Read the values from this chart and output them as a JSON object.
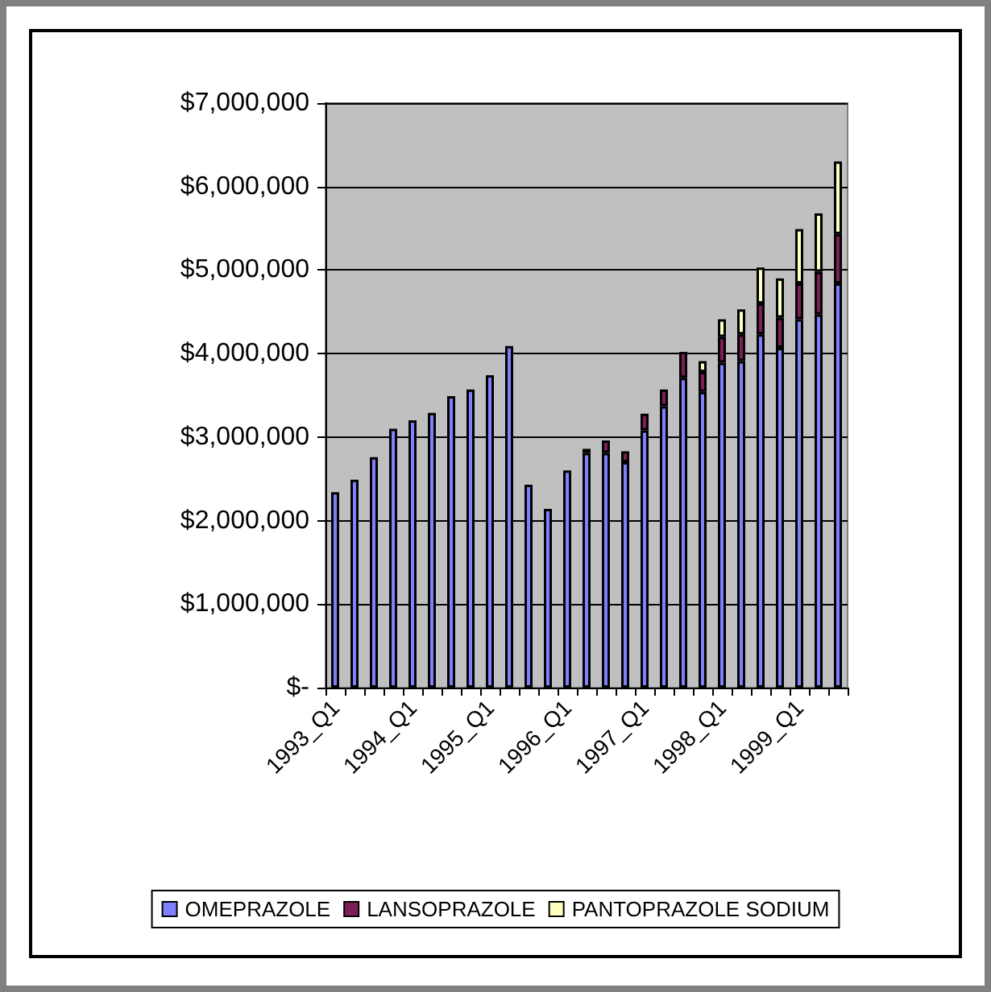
{
  "chart_data": {
    "type": "bar",
    "stacked": true,
    "categories": [
      "1993_Q1",
      null,
      null,
      null,
      "1994_Q1",
      null,
      null,
      null,
      "1995_Q1",
      null,
      null,
      null,
      "1996_Q1",
      null,
      null,
      null,
      "1997_Q1",
      null,
      null,
      null,
      "1998_Q1",
      null,
      null,
      null,
      "1999_Q1",
      null,
      null
    ],
    "series": [
      {
        "name": "OMEPRAZOLE",
        "color": "#8080ff",
        "values": [
          2340000,
          2490000,
          2760000,
          3100000,
          3200000,
          3290000,
          3490000,
          3570000,
          3740000,
          4090000,
          2430000,
          2140000,
          2600000,
          2810000,
          2810000,
          2700000,
          3080000,
          3370000,
          3710000,
          3540000,
          3890000,
          3910000,
          4230000,
          4070000,
          4410000,
          4470000,
          4840000
        ]
      },
      {
        "name": "LANSOPRAZOLE",
        "color": "#7f1f5a",
        "values": [
          null,
          null,
          null,
          null,
          null,
          null,
          null,
          null,
          null,
          null,
          null,
          null,
          null,
          50000,
          150000,
          130000,
          200000,
          200000,
          310000,
          240000,
          310000,
          320000,
          370000,
          360000,
          430000,
          510000,
          590000
        ]
      },
      {
        "name": "PANTOPRAZOLE SODIUM",
        "color": "#ffffc0",
        "values": [
          null,
          null,
          null,
          null,
          null,
          null,
          null,
          null,
          null,
          null,
          null,
          null,
          null,
          null,
          null,
          null,
          null,
          null,
          null,
          130000,
          210000,
          300000,
          430000,
          470000,
          650000,
          700000,
          870000
        ]
      }
    ],
    "ylim": [
      0,
      7000000
    ],
    "yticks": [
      {
        "value": 0,
        "label": "$-"
      },
      {
        "value": 1000000,
        "label": "$1,000,000"
      },
      {
        "value": 2000000,
        "label": "$2,000,000"
      },
      {
        "value": 3000000,
        "label": "$3,000,000"
      },
      {
        "value": 4000000,
        "label": "$4,000,000"
      },
      {
        "value": 5000000,
        "label": "$5,000,000"
      },
      {
        "value": 6000000,
        "label": "$6,000,000"
      },
      {
        "value": 7000000,
        "label": "$7,000,000"
      }
    ],
    "grid": "y",
    "legend": "bottom"
  }
}
